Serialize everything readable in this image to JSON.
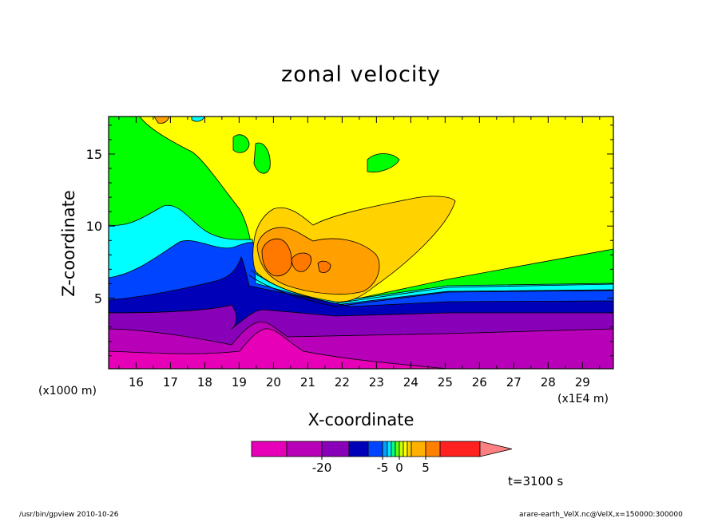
{
  "chart_data": {
    "type": "contour",
    "title": "zonal velocity",
    "xlabel": "X-coordinate",
    "ylabel": "Z-coordinate",
    "x_unit_left": "(x1000 m)",
    "x_unit_right": "(x1E4 m)",
    "x_ticks": [
      "16",
      "17",
      "18",
      "19",
      "20",
      "21",
      "22",
      "23",
      "24",
      "25",
      "26",
      "27",
      "28",
      "29"
    ],
    "y_ticks": [
      "5",
      "10",
      "15"
    ],
    "xlim": [
      15.2,
      29.9
    ],
    "ylim": [
      0.1,
      17.6
    ],
    "colorbar": {
      "tick_labels": [
        "-20",
        "-5",
        "0",
        "5"
      ],
      "tick_values": [
        -20,
        -5,
        0,
        5
      ],
      "levels": [
        -30,
        -25,
        -20,
        -15,
        -10,
        -5,
        -3,
        -2,
        -1,
        0,
        1,
        2,
        3,
        5,
        10,
        15,
        20
      ],
      "colors": [
        "#e600b8",
        "#b800b8",
        "#8800b8",
        "#0000b8",
        "#0044ff",
        "#00a0ff",
        "#00e8ff",
        "#00ff80",
        "#66ff00",
        "#ccff00",
        "#ffff00",
        "#ffd200",
        "#ffb000",
        "#ff8000",
        "#ff2020",
        "#ff8080"
      ]
    },
    "regions": [
      {
        "name": "upper-background",
        "level": "1 to 2",
        "color": "#ffff00"
      },
      {
        "name": "upper-left-band",
        "level": "-1 to 0",
        "color": "#00ff00"
      },
      {
        "name": "cyan-band",
        "level": "-3 to -2",
        "color": "#00ffff"
      },
      {
        "name": "blue-band",
        "level": "-5 to -3",
        "color": "#0044ff"
      },
      {
        "name": "navy-band",
        "level": "-10 to -5",
        "color": "#0000b8"
      },
      {
        "name": "violet-band",
        "level": "-15 to -10",
        "color": "#8800b8"
      },
      {
        "name": "purple-band",
        "level": "-20 to -15",
        "color": "#b800b8"
      },
      {
        "name": "magenta-band",
        "level": "-25 to -20",
        "color": "#e600b8"
      },
      {
        "name": "light-orange-region",
        "level": "2 to 3",
        "color": "#ffd200"
      },
      {
        "name": "orange-region",
        "level": "3 to 5",
        "color": "#ffa000"
      },
      {
        "name": "dark-orange-core",
        "level": "5 to 10",
        "color": "#ff7800"
      }
    ]
  },
  "annotations": {
    "time_label": "t=3100 s",
    "footer_left": "/usr/bin/gpview   2010-10-26",
    "footer_right": "arare-earth_VelX.nc@VelX,x=150000:300000"
  }
}
